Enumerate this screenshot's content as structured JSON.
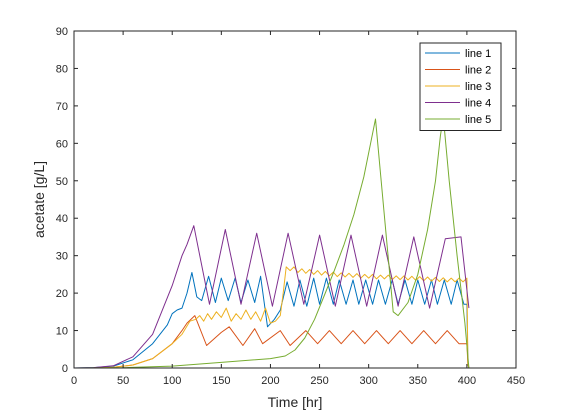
{
  "chart_data": {
    "type": "line",
    "title": "",
    "xlabel": "Time [hr]",
    "ylabel": "acetate [g/L]",
    "xlim": [
      0,
      450
    ],
    "ylim": [
      0,
      90
    ],
    "xticks": [
      "0",
      "50",
      "100",
      "150",
      "200",
      "250",
      "300",
      "350",
      "400",
      "450"
    ],
    "yticks": [
      "0",
      "10",
      "20",
      "30",
      "40",
      "50",
      "60",
      "70",
      "80",
      "90"
    ],
    "grid": false,
    "legend_position": "top-right",
    "series": [
      {
        "name": "line 1",
        "color": "#0072BD",
        "x": [
          0,
          20,
          40,
          60,
          80,
          95,
          100,
          105,
          110,
          115,
          120,
          125,
          130,
          137,
          144,
          150,
          157,
          164,
          170,
          177,
          184,
          190,
          197,
          204,
          210,
          217,
          224,
          230,
          237,
          244,
          250,
          257,
          264,
          270,
          277,
          284,
          290,
          297,
          304,
          310,
          317,
          324,
          330,
          337,
          344,
          350,
          357,
          364,
          370,
          377,
          384,
          390,
          397,
          400,
          401,
          402
        ],
        "y": [
          0,
          0.1,
          0.5,
          2.2,
          6.5,
          11.5,
          14.5,
          15.5,
          16,
          20,
          25.5,
          19,
          18,
          24.5,
          17.5,
          24,
          18,
          24,
          17.5,
          23.5,
          17.5,
          24.5,
          11,
          13,
          15.5,
          23,
          16.5,
          23.5,
          16.5,
          24,
          17,
          24,
          17,
          23.5,
          17,
          23.5,
          17,
          23.5,
          17,
          23.5,
          17,
          23.5,
          17,
          23.5,
          17,
          23.5,
          17,
          23.5,
          17,
          23.5,
          17,
          23.5,
          17,
          17,
          1,
          0
        ]
      },
      {
        "name": "line 2",
        "color": "#D95319",
        "x": [
          0,
          20,
          40,
          60,
          80,
          100,
          110,
          115,
          123,
          135,
          150,
          158,
          172,
          184,
          192,
          210,
          220,
          236,
          248,
          260,
          272,
          284,
          296,
          308,
          320,
          332,
          344,
          356,
          368,
          380,
          392,
          400,
          401,
          402
        ],
        "y": [
          0,
          0,
          0.2,
          0.8,
          2.5,
          6.5,
          10,
          12,
          14,
          6,
          9.5,
          11,
          6,
          10.5,
          6.5,
          10,
          6,
          10,
          6.5,
          10,
          6.5,
          10,
          6.5,
          10,
          6.5,
          10,
          6.5,
          10,
          6.5,
          10,
          6.5,
          6.5,
          1,
          0
        ]
      },
      {
        "name": "line 3",
        "color": "#EDB120",
        "x": [
          0,
          20,
          40,
          60,
          80,
          100,
          110,
          118,
          124,
          128,
          132,
          136,
          140,
          145,
          150,
          155,
          160,
          165,
          170,
          175,
          180,
          185,
          190,
          195,
          200,
          205,
          210,
          213,
          216,
          220,
          224,
          228,
          232,
          236,
          240,
          244,
          248,
          252,
          256,
          260,
          264,
          268,
          272,
          276,
          280,
          284,
          288,
          292,
          296,
          300,
          304,
          308,
          312,
          316,
          320,
          324,
          328,
          332,
          336,
          340,
          344,
          348,
          352,
          356,
          360,
          364,
          368,
          372,
          376,
          380,
          384,
          388,
          392,
          396,
          400,
          401,
          402
        ],
        "y": [
          0,
          0,
          0.2,
          0.8,
          2.5,
          6.5,
          9,
          12.5,
          13,
          14,
          12.5,
          14.5,
          13,
          15,
          13.5,
          16,
          12.5,
          14.5,
          13,
          15.5,
          13,
          15,
          12.5,
          16,
          12,
          12.5,
          14,
          20,
          27,
          26,
          27,
          25.5,
          26.5,
          25.3,
          26.3,
          25,
          26,
          24.8,
          25.8,
          24.6,
          25.6,
          24.4,
          25.4,
          24.3,
          25.3,
          24.2,
          25.2,
          24,
          25,
          24,
          25,
          23.8,
          24.8,
          23.8,
          24.8,
          23.6,
          24.6,
          23.6,
          24.6,
          23.5,
          24.5,
          23.4,
          24.4,
          23.3,
          24.3,
          23.2,
          24.2,
          23.1,
          24.1,
          23,
          24,
          23,
          24,
          23,
          24,
          1,
          0
        ]
      },
      {
        "name": "line 4",
        "color": "#7E2F8E",
        "x": [
          0,
          20,
          40,
          60,
          80,
          100,
          110,
          115,
          122,
          138,
          154,
          170,
          186,
          202,
          218,
          234,
          250,
          266,
          282,
          298,
          314,
          330,
          346,
          362,
          378,
          394,
          402
        ],
        "y": [
          0,
          0.1,
          0.6,
          3,
          9,
          22,
          30,
          33,
          38,
          17,
          37,
          17,
          36,
          16.5,
          36,
          17,
          35.5,
          16.5,
          35.5,
          16.5,
          35.5,
          16.5,
          35,
          16,
          34.5,
          35,
          16
        ]
      },
      {
        "name": "line 5",
        "color": "#77AC30",
        "x": [
          0,
          50,
          100,
          150,
          200,
          215,
          225,
          235,
          245,
          255,
          265,
          275,
          285,
          295,
          302,
          307,
          325,
          330,
          340,
          350,
          360,
          368,
          373,
          376,
          382,
          390,
          398,
          402
        ],
        "y": [
          0,
          0.1,
          0.5,
          1.5,
          2.5,
          3.2,
          4.8,
          8,
          13,
          19.5,
          26,
          33,
          41,
          51,
          60,
          66.5,
          15,
          14,
          17.5,
          25,
          37,
          50,
          62,
          67,
          50,
          30,
          12,
          0
        ]
      }
    ]
  }
}
